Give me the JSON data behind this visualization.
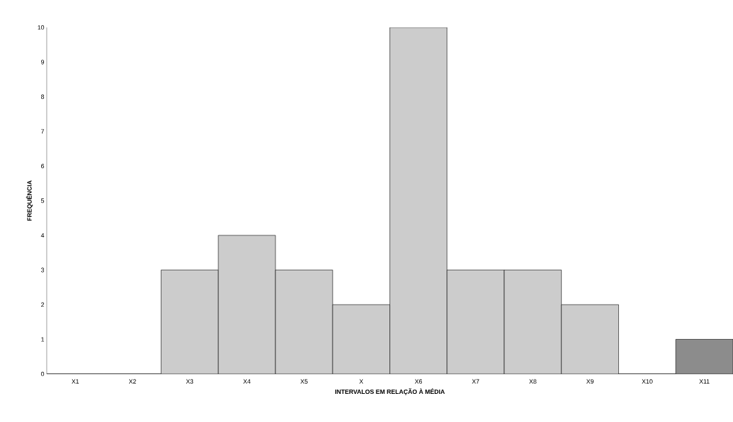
{
  "chart_data": {
    "type": "bar",
    "xlabel": "INTERVALOS EM RELAÇÃO À MÉDIA",
    "ylabel": "FREQUÊNCIA",
    "categories": [
      "X1",
      "X2",
      "X3",
      "X4",
      "X5",
      "X",
      "X6",
      "X7",
      "X8",
      "X9",
      "X10",
      "X11"
    ],
    "values": [
      0,
      0,
      3,
      4,
      3,
      2,
      10,
      3,
      3,
      2,
      0,
      1
    ],
    "colors": [
      "#cccccc",
      "#cccccc",
      "#cccccc",
      "#cccccc",
      "#cccccc",
      "#cccccc",
      "#cccccc",
      "#cccccc",
      "#cccccc",
      "#cccccc",
      "#cccccc",
      "#8c8c8c"
    ],
    "ylim": [
      0,
      10
    ],
    "yticks": [
      0,
      1,
      2,
      3,
      4,
      5,
      6,
      7,
      8,
      9,
      10
    ]
  }
}
